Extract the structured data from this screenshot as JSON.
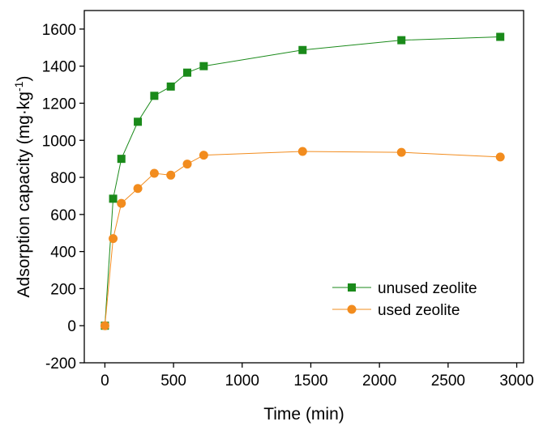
{
  "chart_data": {
    "type": "line",
    "title": "",
    "xlabel": "Time (min)",
    "ylabel": "Adsorption capacity (mg·kg",
    "ylabel_superscript": "-1",
    "ylabel_close": ")",
    "xlim": [
      -150,
      3050
    ],
    "ylim": [
      -200,
      1700
    ],
    "xticks": [
      0,
      500,
      1000,
      1500,
      2000,
      2500,
      3000
    ],
    "yticks": [
      -200,
      0,
      200,
      400,
      600,
      800,
      1000,
      1200,
      1400,
      1600
    ],
    "grid": false,
    "legend_position": "bottom-right",
    "x": [
      0,
      60,
      120,
      240,
      360,
      480,
      600,
      720,
      1440,
      2160,
      2880
    ],
    "series": [
      {
        "name": "unused zeolite",
        "marker": "square",
        "color": "#1a8a1a",
        "values": [
          0,
          685,
          900,
          1100,
          1240,
          1290,
          1365,
          1400,
          1487,
          1540,
          1558
        ]
      },
      {
        "name": "used zeolite",
        "marker": "circle",
        "color": "#f28c1e",
        "values": [
          0,
          470,
          660,
          740,
          822,
          812,
          872,
          920,
          940,
          935,
          910
        ]
      }
    ]
  }
}
